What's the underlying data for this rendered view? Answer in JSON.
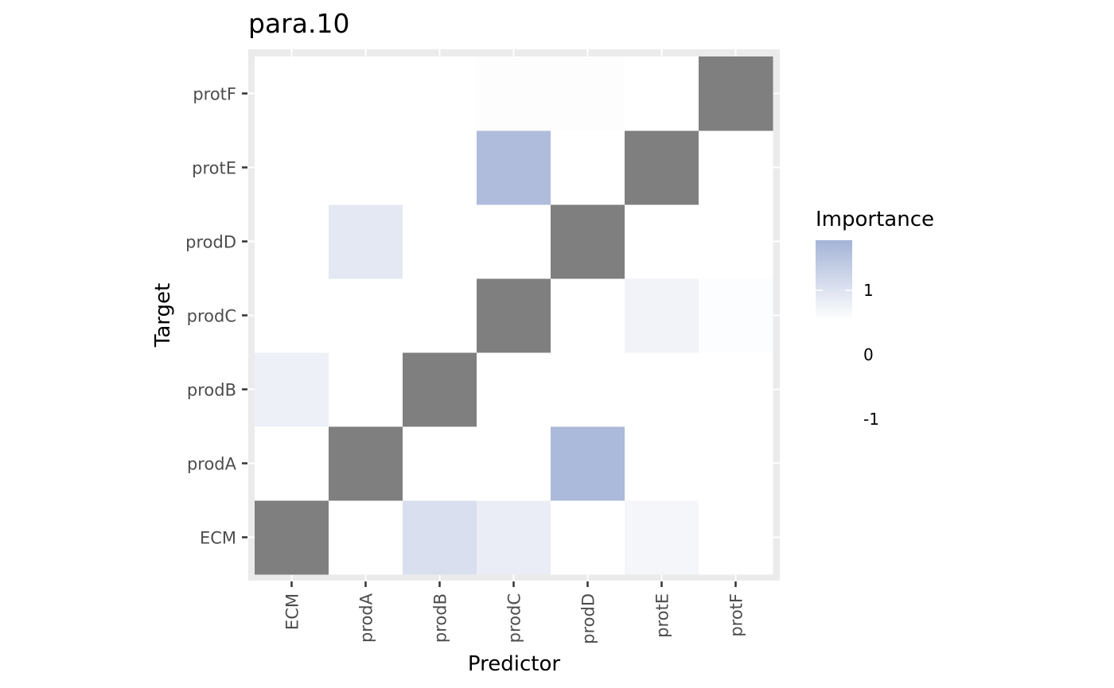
{
  "chart_data": {
    "type": "heatmap",
    "title": "para.10",
    "xlabel": "Predictor",
    "ylabel": "Target",
    "x_categories": [
      "ECM",
      "prodA",
      "prodB",
      "prodC",
      "prodD",
      "protE",
      "protF"
    ],
    "y_categories": [
      "ECM",
      "prodA",
      "prodB",
      "prodC",
      "prodD",
      "protE",
      "protF"
    ],
    "diagonal": "not applicable (grey)",
    "values": [
      [
        null,
        0.0,
        0.55,
        0.3,
        0.0,
        0.15,
        0.0
      ],
      [
        0.0,
        null,
        0.0,
        0.0,
        1.2,
        0.0,
        0.0
      ],
      [
        0.25,
        0.0,
        null,
        0.0,
        0.0,
        0.0,
        0.0
      ],
      [
        0.0,
        0.0,
        0.0,
        null,
        0.0,
        0.2,
        0.04
      ],
      [
        0.0,
        0.4,
        0.0,
        0.0,
        null,
        0.0,
        0.0
      ],
      [
        0.0,
        0.0,
        0.0,
        1.15,
        0.0,
        null,
        0.0
      ],
      [
        0.0,
        0.0,
        0.0,
        0.03,
        0.03,
        0.0,
        null
      ]
    ],
    "legend": {
      "title": "Importance",
      "ticks": [
        "1",
        "0",
        "-1"
      ],
      "placement": "right",
      "low_color": "#ffffff",
      "high_color": "#a4b3d7"
    },
    "grid": true,
    "panel_background": "#ebebeb",
    "na_color": "#7f7f7f"
  }
}
